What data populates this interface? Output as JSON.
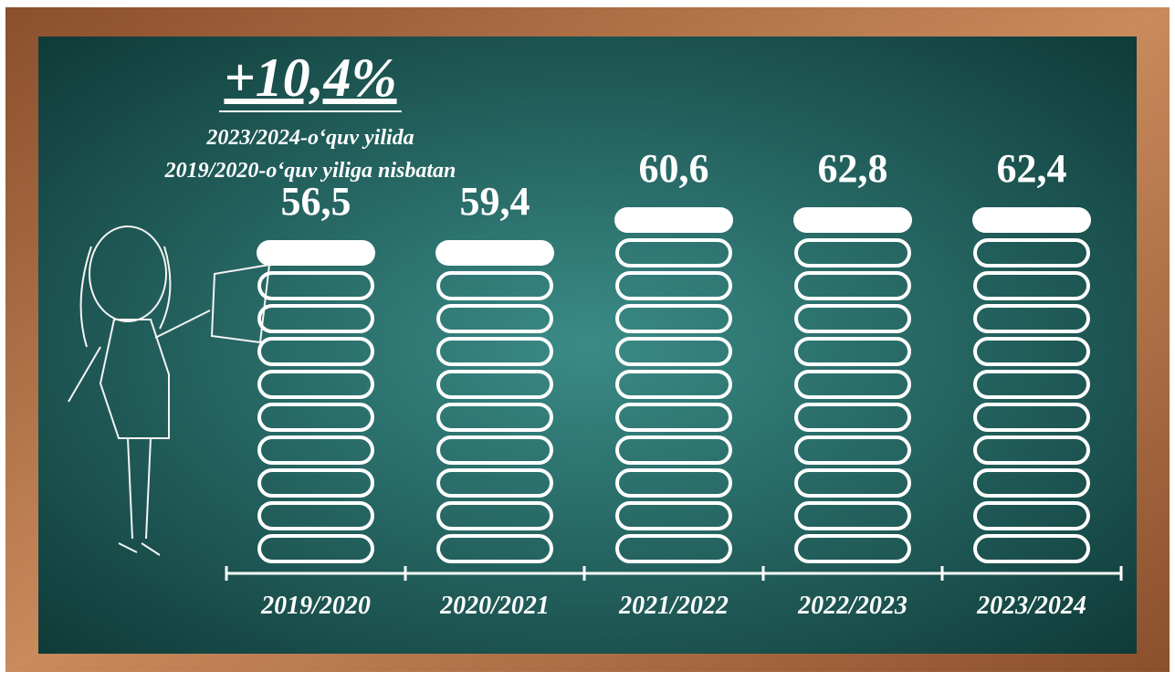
{
  "chart_data": {
    "type": "bar",
    "headline": "+10,4%",
    "subtitle": [
      "2023/2024-o‘quv yilida",
      "2019/2020-o‘quv yiliga nisbatan"
    ],
    "categories": [
      "2019/2020",
      "2020/2021",
      "2021/2022",
      "2022/2023",
      "2023/2024"
    ],
    "values": [
      56.5,
      59.4,
      60.6,
      62.8,
      62.4
    ],
    "value_labels": [
      "56,5",
      "59,4",
      "60,6",
      "62,8",
      "62,4"
    ],
    "color": "#ffffff"
  }
}
